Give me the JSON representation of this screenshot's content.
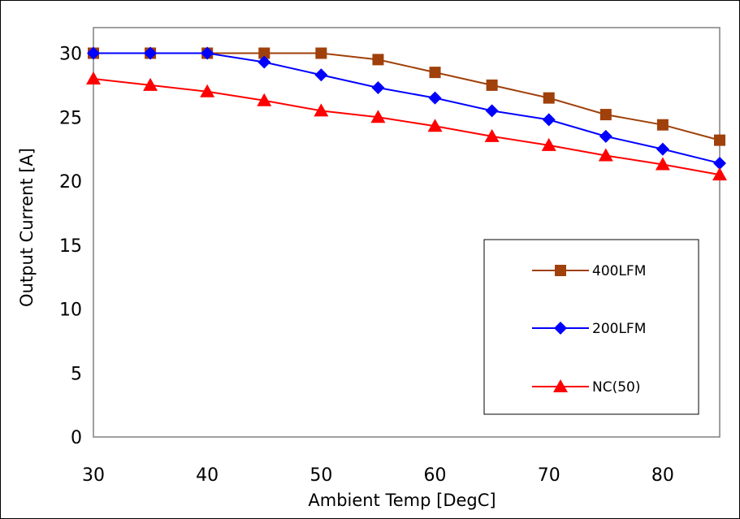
{
  "chart_data": {
    "type": "line",
    "title": "",
    "xlabel": "Ambient Temp [DegC]",
    "ylabel": "Output Current [A]",
    "xlim": [
      30,
      85
    ],
    "ylim": [
      0,
      32
    ],
    "x_ticks": [
      30,
      40,
      50,
      60,
      70,
      80
    ],
    "y_ticks": [
      0,
      5,
      10,
      15,
      20,
      25,
      30
    ],
    "x_tick_labels": [
      "30",
      "40",
      "50",
      "60",
      "70",
      "80"
    ],
    "y_tick_labels": [
      "0",
      "5",
      "10",
      "15",
      "20",
      "25",
      "30"
    ],
    "grid": true,
    "legend_position": "center-right",
    "x": [
      30,
      35,
      40,
      45,
      50,
      55,
      60,
      65,
      70,
      75,
      80,
      85
    ],
    "series": [
      {
        "name": "400LFM",
        "color": "#a0400a",
        "marker": "square",
        "values": [
          30,
          30,
          30,
          30,
          30,
          29.5,
          28.5,
          27.5,
          26.5,
          25.2,
          24.4,
          23.2
        ]
      },
      {
        "name": "200LFM",
        "color": "#0000ff",
        "marker": "diamond",
        "values": [
          30,
          30,
          30,
          29.3,
          28.3,
          27.3,
          26.5,
          25.5,
          24.8,
          23.5,
          22.5,
          21.4
        ]
      },
      {
        "name": "NC(50)",
        "color": "#ff0000",
        "marker": "triangle",
        "values": [
          28,
          27.5,
          27,
          26.3,
          25.5,
          25,
          24.3,
          23.5,
          22.8,
          22,
          21.3,
          20.5
        ]
      }
    ]
  }
}
